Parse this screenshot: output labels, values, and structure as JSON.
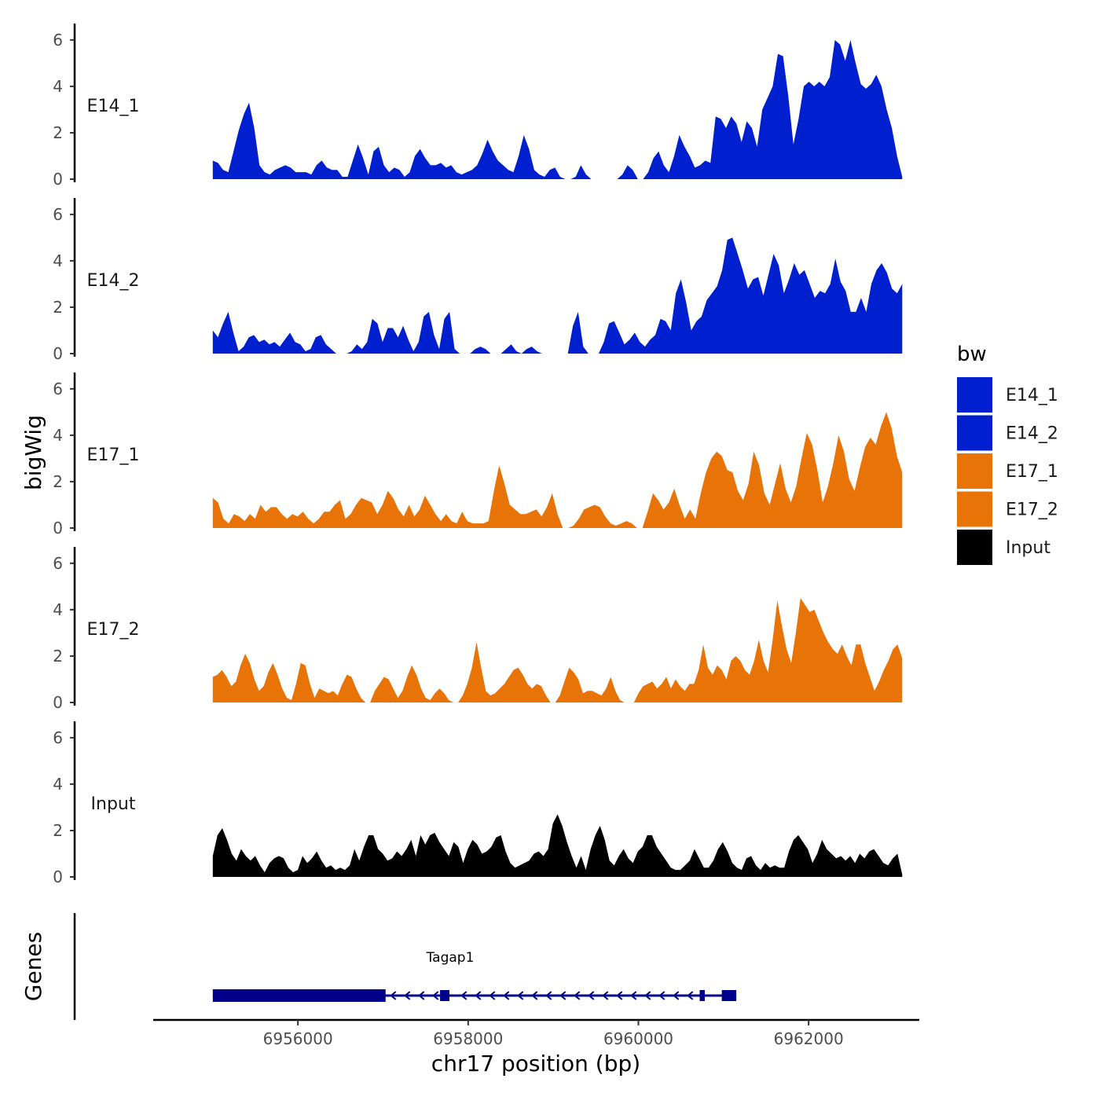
{
  "chart_data": {
    "type": "area",
    "ylabel": "bigWig",
    "xlabel": "chr17 position (bp)",
    "genes_label": "Genes",
    "xlim": [
      6954300,
      6963300
    ],
    "data_xrange": [
      6955000,
      6963100
    ],
    "ylim": [
      0,
      6.3
    ],
    "yticks": [
      "0",
      "2",
      "4",
      "6"
    ],
    "xticks": [
      {
        "value": 6956000,
        "label": "6956000"
      },
      {
        "value": 6958000,
        "label": "6958000"
      },
      {
        "value": 6960000,
        "label": "6960000"
      },
      {
        "value": 6962000,
        "label": "6962000"
      }
    ],
    "legend": {
      "title": "bw",
      "entries": [
        {
          "name": "E14_1",
          "color": "#0020CF"
        },
        {
          "name": "E14_2",
          "color": "#0020CF"
        },
        {
          "name": "E17_1",
          "color": "#E87407"
        },
        {
          "name": "E17_2",
          "color": "#E87407"
        },
        {
          "name": "Input",
          "color": "#000000"
        }
      ]
    },
    "series": [
      {
        "name": "E14_1",
        "color": "#0020CF",
        "values": [
          0.8,
          0.7,
          0.4,
          0.3,
          1.2,
          2.1,
          2.8,
          3.3,
          2.2,
          0.6,
          0.3,
          0.2,
          0.4,
          0.5,
          0.6,
          0.5,
          0.3,
          0.3,
          0.3,
          0.2,
          0.6,
          0.8,
          0.5,
          0.4,
          0.4,
          0.1,
          0.1,
          0.8,
          1.5,
          0.9,
          0.2,
          1.2,
          1.4,
          0.6,
          0.3,
          0.5,
          0.4,
          0.1,
          0.3,
          1.0,
          1.3,
          0.9,
          0.6,
          0.6,
          0.7,
          0.5,
          0.6,
          0.3,
          0.2,
          0.3,
          0.4,
          0.6,
          1.1,
          1.7,
          1.2,
          0.8,
          0.6,
          0.4,
          0.3,
          1.0,
          1.9,
          1.3,
          0.4,
          0.2,
          0.1,
          0.4,
          0.5,
          0.1,
          0.0,
          0.0,
          0.1,
          0.6,
          0.2,
          0.0,
          0.0,
          0.0,
          0.0,
          0.0,
          0.0,
          0.2,
          0.6,
          0.4,
          0.0,
          0.0,
          0.3,
          0.9,
          1.2,
          0.6,
          0.3,
          1.0,
          1.9,
          1.4,
          1.0,
          0.5,
          0.6,
          0.8,
          0.7,
          2.7,
          2.6,
          2.2,
          2.7,
          2.4,
          1.6,
          2.5,
          2.2,
          1.4,
          3.0,
          3.5,
          4.0,
          5.4,
          5.3,
          3.6,
          1.5,
          2.6,
          4.0,
          4.2,
          4.0,
          4.2,
          4.0,
          4.4,
          6.0,
          5.8,
          5.1,
          6.0,
          5.0,
          4.1,
          3.9,
          4.1,
          4.5,
          4.0,
          3.0,
          2.2,
          1.0,
          0.1
        ]
      },
      {
        "name": "E14_2",
        "color": "#0020CF",
        "values": [
          1.0,
          0.7,
          1.3,
          1.8,
          0.9,
          0.1,
          0.3,
          0.7,
          0.8,
          0.5,
          0.6,
          0.4,
          0.5,
          0.3,
          0.6,
          0.9,
          0.5,
          0.4,
          0.1,
          0.2,
          0.7,
          0.8,
          0.4,
          0.2,
          0.0,
          0.0,
          0.0,
          0.1,
          0.4,
          0.2,
          0.5,
          1.5,
          1.3,
          0.5,
          1.1,
          1.1,
          0.7,
          1.2,
          0.6,
          0.1,
          0.5,
          1.6,
          1.8,
          0.8,
          0.2,
          1.5,
          1.8,
          0.2,
          0.0,
          0.0,
          0.0,
          0.2,
          0.3,
          0.2,
          0.0,
          0.0,
          0.0,
          0.2,
          0.4,
          0.1,
          0.0,
          0.2,
          0.3,
          0.1,
          0.0,
          0.0,
          0.0,
          0.0,
          0.0,
          0.0,
          1.2,
          1.8,
          0.3,
          0.0,
          0.0,
          0.0,
          0.5,
          1.3,
          1.4,
          0.9,
          0.4,
          0.6,
          0.9,
          0.5,
          0.3,
          0.6,
          0.8,
          1.5,
          1.4,
          1.0,
          2.6,
          3.2,
          2.2,
          1.0,
          1.4,
          1.6,
          2.3,
          2.6,
          2.9,
          3.6,
          4.9,
          5.0,
          4.3,
          3.6,
          2.8,
          3.2,
          3.3,
          2.5,
          3.4,
          4.3,
          3.8,
          2.6,
          3.2,
          3.9,
          3.4,
          3.6,
          3.0,
          2.4,
          2.7,
          2.6,
          3.0,
          4.1,
          3.1,
          2.7,
          1.8,
          1.8,
          2.4,
          1.8,
          3.0,
          3.6,
          3.9,
          3.5,
          2.8,
          2.6,
          3.0
        ]
      },
      {
        "name": "E17_1",
        "color": "#E87407",
        "values": [
          1.3,
          1.1,
          0.4,
          0.2,
          0.6,
          0.5,
          0.3,
          0.6,
          0.4,
          1.0,
          0.7,
          0.9,
          0.9,
          0.6,
          0.4,
          0.6,
          0.5,
          0.7,
          0.4,
          0.2,
          0.4,
          0.7,
          0.7,
          1.0,
          1.2,
          0.4,
          0.6,
          1.0,
          1.3,
          1.2,
          1.1,
          0.6,
          1.0,
          1.6,
          1.3,
          0.8,
          0.5,
          1.0,
          0.5,
          0.8,
          1.4,
          1.0,
          0.6,
          0.3,
          0.6,
          0.3,
          0.2,
          0.7,
          0.3,
          0.2,
          0.2,
          0.2,
          0.3,
          1.6,
          2.7,
          1.9,
          1.0,
          0.8,
          0.6,
          0.6,
          0.7,
          0.8,
          0.5,
          0.9,
          1.5,
          0.6,
          0.0,
          0.0,
          0.1,
          0.4,
          0.8,
          0.9,
          1.0,
          0.9,
          0.5,
          0.2,
          0.1,
          0.2,
          0.3,
          0.2,
          0.0,
          0.0,
          0.7,
          1.5,
          1.2,
          0.8,
          1.1,
          1.7,
          1.0,
          0.4,
          0.8,
          0.4,
          1.5,
          2.4,
          3.0,
          3.3,
          3.1,
          2.5,
          2.4,
          1.6,
          1.2,
          1.9,
          3.3,
          2.7,
          1.5,
          1.0,
          1.9,
          2.8,
          1.7,
          1.1,
          1.8,
          3.0,
          4.1,
          3.6,
          2.5,
          1.1,
          1.8,
          2.8,
          4.0,
          3.3,
          2.1,
          1.6,
          2.6,
          3.5,
          3.9,
          3.6,
          4.4,
          5.0,
          4.3,
          3.1,
          2.4
        ]
      },
      {
        "name": "E17_2",
        "color": "#E87407",
        "values": [
          1.1,
          1.2,
          1.4,
          1.1,
          0.7,
          0.9,
          1.6,
          2.1,
          1.7,
          1.0,
          0.5,
          0.7,
          1.3,
          1.7,
          1.2,
          0.6,
          0.2,
          0.1,
          0.8,
          1.7,
          1.6,
          0.8,
          0.2,
          0.6,
          0.5,
          0.4,
          0.5,
          0.3,
          0.8,
          1.2,
          1.1,
          0.6,
          0.2,
          0.0,
          0.0,
          0.5,
          0.8,
          1.1,
          1.0,
          0.6,
          0.2,
          0.5,
          1.1,
          1.6,
          1.2,
          0.6,
          0.2,
          0.1,
          0.4,
          0.6,
          0.4,
          0.1,
          0.0,
          0.0,
          0.3,
          0.8,
          1.5,
          2.6,
          1.5,
          0.5,
          0.3,
          0.4,
          0.6,
          0.8,
          1.1,
          1.4,
          1.5,
          1.2,
          0.8,
          0.6,
          0.8,
          0.7,
          0.3,
          0.0,
          0.0,
          0.3,
          0.9,
          1.5,
          1.3,
          1.0,
          0.4,
          0.5,
          0.5,
          0.4,
          0.3,
          0.6,
          1.1,
          0.5,
          0.1,
          0.0,
          0.0,
          0.0,
          0.4,
          0.7,
          0.8,
          0.9,
          0.6,
          0.8,
          1.1,
          0.6,
          1.0,
          0.7,
          0.5,
          0.8,
          0.8,
          1.4,
          2.5,
          1.5,
          1.2,
          1.6,
          1.4,
          1.0,
          1.8,
          2.0,
          1.8,
          1.4,
          1.2,
          1.8,
          2.7,
          1.8,
          1.3,
          2.7,
          4.4,
          3.3,
          2.3,
          1.7,
          3.0,
          4.5,
          4.2,
          3.9,
          4.0,
          3.5,
          3.0,
          2.6,
          2.3,
          2.1,
          2.5,
          2.0,
          1.6,
          2.5,
          2.5,
          1.7,
          1.1,
          0.5,
          0.9,
          1.4,
          1.8,
          2.3,
          2.5,
          1.9
        ]
      },
      {
        "name": "Input",
        "color": "#000000",
        "values": [
          0.9,
          1.8,
          2.1,
          1.6,
          1.0,
          0.7,
          1.2,
          0.9,
          0.7,
          0.9,
          0.5,
          0.2,
          0.6,
          0.8,
          0.9,
          0.8,
          0.4,
          0.2,
          0.3,
          0.9,
          0.6,
          0.8,
          1.1,
          0.7,
          0.4,
          0.5,
          0.3,
          0.4,
          0.3,
          0.5,
          1.2,
          0.7,
          1.3,
          1.8,
          1.8,
          1.2,
          1.0,
          0.7,
          0.8,
          1.1,
          0.9,
          1.2,
          1.6,
          0.9,
          1.8,
          1.4,
          1.8,
          1.9,
          1.5,
          1.2,
          0.9,
          1.5,
          1.3,
          0.6,
          1.2,
          1.6,
          1.4,
          1.0,
          1.1,
          1.3,
          1.7,
          1.8,
          1.1,
          0.6,
          0.4,
          0.5,
          0.6,
          0.7,
          1.0,
          1.1,
          0.9,
          1.2,
          2.3,
          2.7,
          2.2,
          1.5,
          0.9,
          0.4,
          0.9,
          0.3,
          1.2,
          1.8,
          2.2,
          1.6,
          0.7,
          0.5,
          0.9,
          1.2,
          0.8,
          0.6,
          1.1,
          1.3,
          1.8,
          1.8,
          1.3,
          1.0,
          0.7,
          0.4,
          0.3,
          0.3,
          0.5,
          0.7,
          1.2,
          0.8,
          0.4,
          0.4,
          0.7,
          1.2,
          1.5,
          1.1,
          0.6,
          0.4,
          0.3,
          0.8,
          0.9,
          0.5,
          0.3,
          0.6,
          0.4,
          0.5,
          0.4,
          0.4,
          1.1,
          1.6,
          1.8,
          1.5,
          1.2,
          0.6,
          1.0,
          1.6,
          1.2,
          1.0,
          0.8,
          0.9,
          0.7,
          0.9,
          0.6,
          1.0,
          0.8,
          1.1,
          1.2,
          0.9,
          0.6,
          0.5,
          0.8,
          1.0,
          0.1
        ]
      }
    ],
    "gene": {
      "name": "Tagap1",
      "start": 6955000,
      "end": 6961150,
      "exons": [
        [
          6955000,
          6957030
        ],
        [
          6957670,
          6957780
        ],
        [
          6960720,
          6960780
        ],
        [
          6960980,
          6961150
        ]
      ],
      "strand": "-"
    }
  }
}
